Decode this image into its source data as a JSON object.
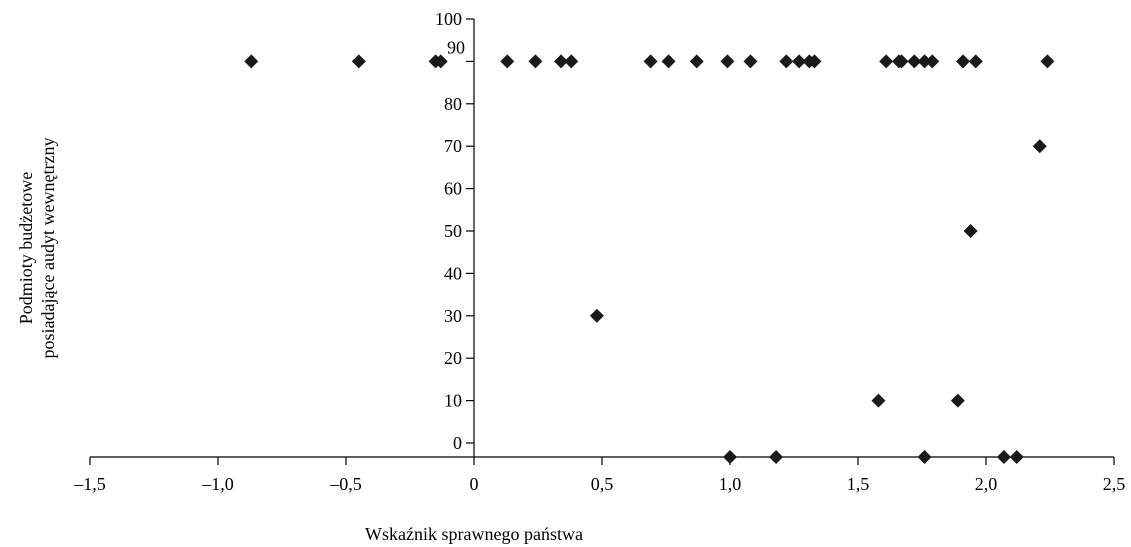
{
  "chart_data": {
    "type": "scatter",
    "title": "",
    "xlabel": "Wskaźnik sprawnego państwa",
    "ylabel_lines": [
      "Podmioty budżetowe",
      "posiadające audyt wewnętrzny"
    ],
    "xlim": [
      -1.5,
      2.5
    ],
    "ylim": [
      -1,
      100
    ],
    "x_ticks": [
      "-1,5",
      "-1,0",
      "-0,5",
      "0",
      "0,5",
      "1,0",
      "1,5",
      "2,0",
      "2,5"
    ],
    "x_tick_values": [
      -1.5,
      -1.0,
      -0.5,
      0,
      0.5,
      1.0,
      1.5,
      2.0,
      2.5
    ],
    "y_ticks": [
      "100",
      "90",
      "80",
      "70",
      "60",
      "50",
      "40",
      "30",
      "20",
      "10",
      "0"
    ],
    "y_tick_values": [
      100,
      90,
      80,
      70,
      60,
      50,
      40,
      30,
      20,
      10,
      0
    ],
    "grid": false,
    "marker": "diamond",
    "marker_color": "#1a1a1a",
    "series": [
      {
        "points": [
          [
            -0.87,
            90
          ],
          [
            -0.45,
            90
          ],
          [
            -0.15,
            90
          ],
          [
            -0.13,
            90
          ],
          [
            0.13,
            90
          ],
          [
            0.24,
            90
          ],
          [
            0.34,
            90
          ],
          [
            0.38,
            90
          ],
          [
            0.69,
            90
          ],
          [
            0.76,
            90
          ],
          [
            0.87,
            90
          ],
          [
            0.99,
            90
          ],
          [
            1.08,
            90
          ],
          [
            1.22,
            90
          ],
          [
            1.27,
            90
          ],
          [
            1.31,
            90
          ],
          [
            1.33,
            90
          ],
          [
            1.61,
            90
          ],
          [
            1.66,
            90
          ],
          [
            1.67,
            90
          ],
          [
            1.72,
            90
          ],
          [
            1.76,
            90
          ],
          [
            1.79,
            90
          ],
          [
            1.91,
            90
          ],
          [
            1.96,
            90
          ],
          [
            2.24,
            90
          ],
          [
            2.21,
            70
          ],
          [
            1.94,
            50
          ],
          [
            0.48,
            30
          ],
          [
            1.58,
            10
          ],
          [
            1.89,
            10
          ],
          [
            1.0,
            -1
          ],
          [
            1.18,
            -1
          ],
          [
            1.76,
            -1
          ],
          [
            2.07,
            -1
          ],
          [
            2.12,
            -1
          ]
        ]
      }
    ]
  }
}
